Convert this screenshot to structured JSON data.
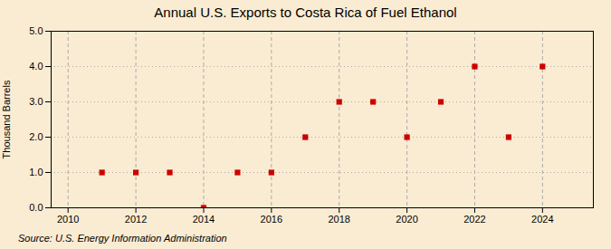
{
  "chart_data": {
    "type": "scatter",
    "title": "Annual U.S. Exports to Costa Rica of Fuel Ethanol",
    "ylabel": "Thousand Barrels",
    "annotations": [
      "Source: U.S. Energy Information Administration"
    ],
    "x": [
      2011,
      2012,
      2013,
      2014,
      2015,
      2016,
      2017,
      2018,
      2019,
      2020,
      2021,
      2022,
      2023,
      2024
    ],
    "values": [
      1.0,
      1.0,
      1.0,
      0.0,
      1.0,
      1.0,
      2.0,
      3.0,
      3.0,
      2.0,
      3.0,
      4.0,
      2.0,
      4.0
    ],
    "color": "#cc0000",
    "marker": "square",
    "xlim": [
      2009.5,
      2025.5
    ],
    "xticks": [
      2010,
      2012,
      2014,
      2016,
      2018,
      2020,
      2022,
      2024
    ],
    "ylim": [
      0,
      5
    ],
    "yticks": [
      {
        "value": 0,
        "label": "0.0"
      },
      {
        "value": 1,
        "label": "1.0"
      },
      {
        "value": 2,
        "label": "2.0"
      },
      {
        "value": 3,
        "label": "3.0"
      },
      {
        "value": 4,
        "label": "4.0"
      },
      {
        "value": 5,
        "label": "5.0"
      }
    ],
    "grid": true
  }
}
